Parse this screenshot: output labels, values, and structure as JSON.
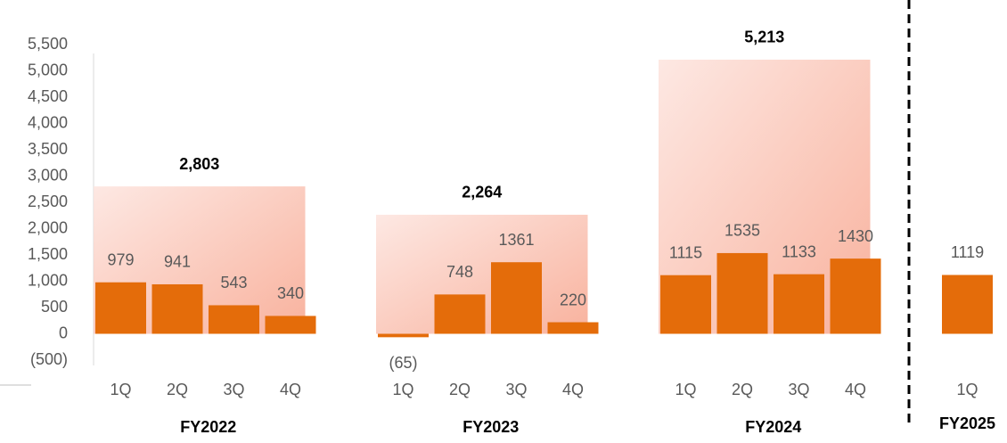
{
  "chart_data": {
    "type": "bar",
    "color": "#e46c0a",
    "ylim": [
      -500,
      5500
    ],
    "yticks": [
      {
        "value": -500,
        "label": "(500)"
      },
      0,
      500,
      {
        "value": 1000,
        "label": "1,000"
      },
      {
        "value": 1500,
        "label": "1,500"
      },
      {
        "value": 2000,
        "label": "2,000"
      },
      {
        "value": 2500,
        "label": "2,500"
      },
      {
        "value": 3000,
        "label": "3,000"
      },
      {
        "value": 3500,
        "label": "3,500"
      },
      {
        "value": 4000,
        "label": "4,000"
      },
      {
        "value": 4500,
        "label": "4,500"
      },
      {
        "value": 5000,
        "label": "5,000"
      },
      {
        "value": 5500,
        "label": "5,500"
      }
    ],
    "groups": [
      {
        "name": "FY2022",
        "categories": [
          "1Q",
          "2Q",
          "3Q",
          "4Q"
        ],
        "values": [
          979,
          941,
          543,
          340
        ],
        "total": 2803,
        "total_label": "2,803"
      },
      {
        "name": "FY2023",
        "categories": [
          "1Q",
          "2Q",
          "3Q",
          "4Q"
        ],
        "values": [
          -65,
          748,
          1361,
          220
        ],
        "value_labels": [
          "(65)",
          "748",
          "1361",
          "220"
        ],
        "total": 2264,
        "total_label": "2,264"
      },
      {
        "name": "FY2024",
        "categories": [
          "1Q",
          "2Q",
          "3Q",
          "4Q"
        ],
        "values": [
          1115,
          1535,
          1133,
          1430
        ],
        "total": 5213,
        "total_label": "5,213"
      },
      {
        "name": "FY2025",
        "categories": [
          "1Q"
        ],
        "values": [
          1119
        ]
      }
    ]
  }
}
